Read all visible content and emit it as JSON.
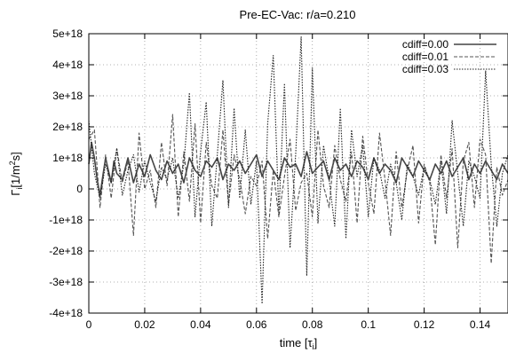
{
  "chart_data": {
    "type": "line",
    "title": "Pre-EC-Vac: r/a=0.210",
    "xlabel": "time [τi]",
    "xlabel_parts": {
      "main": "time [τ",
      "sub": "i",
      "end": "]"
    },
    "ylabel": "Γi[1/m2s]",
    "ylabel_parts": {
      "sym": "Γ",
      "sub": "i",
      "mid": "[1/m",
      "sup": "2",
      "end": "s]"
    },
    "xlim": [
      0,
      0.15
    ],
    "ylim": [
      -4e+18,
      5e+18
    ],
    "xticks": [
      0,
      0.02,
      0.04,
      0.06,
      0.08,
      0.1,
      0.12,
      0.14
    ],
    "xtick_labels": [
      "0",
      "0.02",
      "0.04",
      "0.06",
      "0.08",
      "0.1",
      "0.12",
      "0.14"
    ],
    "yticks": [
      -4e+18,
      -3e+18,
      -2e+18,
      -1e+18,
      0,
      1e+18,
      2e+18,
      3e+18,
      4e+18,
      5e+18
    ],
    "ytick_labels": [
      "-4e+18",
      "-3e+18",
      "-2e+18",
      "-1e+18",
      "0",
      "1e+18",
      "2e+18",
      "3e+18",
      "4e+18",
      "5e+18"
    ],
    "grid": true,
    "legend_position": "top-right",
    "series": [
      {
        "name": "cdiff=0.00",
        "style": "solid",
        "color": "#444444",
        "x": [
          0,
          0.001,
          0.002,
          0.003,
          0.004,
          0.005,
          0.006,
          0.007,
          0.008,
          0.009,
          0.01,
          0.012,
          0.014,
          0.016,
          0.018,
          0.02,
          0.022,
          0.024,
          0.026,
          0.028,
          0.03,
          0.032,
          0.034,
          0.036,
          0.038,
          0.04,
          0.042,
          0.044,
          0.046,
          0.048,
          0.05,
          0.052,
          0.054,
          0.056,
          0.058,
          0.06,
          0.062,
          0.064,
          0.066,
          0.068,
          0.07,
          0.072,
          0.074,
          0.076,
          0.078,
          0.08,
          0.082,
          0.084,
          0.086,
          0.088,
          0.09,
          0.092,
          0.094,
          0.096,
          0.098,
          0.1,
          0.102,
          0.104,
          0.106,
          0.108,
          0.11,
          0.112,
          0.114,
          0.116,
          0.118,
          0.12,
          0.122,
          0.124,
          0.126,
          0.128,
          0.13,
          0.132,
          0.134,
          0.136,
          0.138,
          0.14,
          0.142,
          0.144,
          0.146,
          0.148,
          0.15
        ],
        "y": [
          8e+17,
          1.5e+18,
          1e+18,
          3e+17,
          -2e+17,
          4e+17,
          1e+18,
          6e+17,
          2e+17,
          9e+17,
          5e+17,
          3e+17,
          1e+18,
          2e+17,
          8e+17,
          4e+17,
          1.1e+18,
          6e+17,
          3e+17,
          9e+17,
          5e+17,
          8e+17,
          2e+17,
          1e+18,
          6e+17,
          4e+17,
          9e+17,
          7e+17,
          1e+18,
          3e+17,
          8e+17,
          6e+17,
          9e+17,
          5e+17,
          8e+17,
          1.1e+18,
          4e+17,
          9e+17,
          6e+17,
          3e+17,
          1e+18,
          7e+17,
          8e+17,
          4e+17,
          1.2e+18,
          5e+17,
          7e+17,
          9e+17,
          3e+17,
          1e+18,
          6e+17,
          8e+17,
          4e+17,
          9e+17,
          7e+17,
          3e+17,
          1e+18,
          5e+17,
          8e+17,
          6e+17,
          2e+17,
          1e+18,
          7e+17,
          4e+17,
          9e+17,
          6e+17,
          3e+17,
          8e+17,
          5e+17,
          9e+17,
          4e+17,
          7e+17,
          1e+18,
          3e+17,
          8e+17,
          5e+17,
          9e+17,
          6e+17,
          3e+17,
          8e+17,
          5e+17
        ]
      },
      {
        "name": "cdiff=0.01",
        "style": "dashed",
        "color": "#555555",
        "x": [
          0,
          0.002,
          0.004,
          0.006,
          0.008,
          0.01,
          0.012,
          0.014,
          0.016,
          0.018,
          0.02,
          0.022,
          0.024,
          0.026,
          0.028,
          0.03,
          0.032,
          0.034,
          0.036,
          0.038,
          0.04,
          0.042,
          0.044,
          0.046,
          0.048,
          0.05,
          0.052,
          0.054,
          0.056,
          0.058,
          0.06,
          0.062,
          0.064,
          0.066,
          0.068,
          0.07,
          0.072,
          0.074,
          0.076,
          0.078,
          0.08,
          0.082,
          0.084,
          0.086,
          0.088,
          0.09,
          0.092,
          0.094,
          0.096,
          0.098,
          0.1,
          0.102,
          0.104,
          0.106,
          0.108,
          0.11,
          0.112,
          0.114,
          0.116,
          0.118,
          0.12,
          0.122,
          0.124,
          0.126,
          0.128,
          0.13,
          0.132,
          0.134,
          0.136,
          0.138,
          0.14,
          0.142,
          0.144,
          0.146,
          0.148,
          0.15
        ],
        "y": [
          1.6e+18,
          1.9e+18,
          -6e+17,
          1.1e+18,
          -3e+17,
          1.3e+18,
          2e+17,
          9e+17,
          -1.5e+18,
          1.8e+18,
          0.0,
          6e+17,
          -6e+17,
          1.5e+18,
          1e+17,
          2.4e+18,
          -9e+17,
          1.2e+18,
          -4e+17,
          2.1e+18,
          -1.1e+18,
          1.5e+18,
          1e+17,
          -3e+17,
          1.9e+18,
          -5e+17,
          1.1e+18,
          3e+17,
          -8e+17,
          4e+17,
          1e+17,
          9e+17,
          -1.6e+18,
          6e+17,
          -9e+17,
          4e+17,
          1.6e+18,
          -7e+17,
          2e+17,
          5e+17,
          -9e+17,
          1.9e+18,
          1e+17,
          -6e+17,
          1.4e+18,
          3e+17,
          -4e+17,
          1.2e+18,
          -1.1e+18,
          1.7e+18,
          2e+17,
          -8e+17,
          1.8e+18,
          3e+17,
          -1.5e+18,
          1.2e+18,
          -6e+17,
          6e+17,
          1.4e+18,
          -1.1e+18,
          8e+17,
          2e+17,
          -1.8e+18,
          1.1e+18,
          -3e+17,
          1.3e+18,
          -1.9e+18,
          9e+17,
          1.5e+18,
          -6e+17,
          1.6e+18,
          1.1e+18,
          -2.4e+18,
          7e+17,
          -2e+17,
          3e+17
        ]
      },
      {
        "name": "cdiff=0.03",
        "style": "dotted",
        "color": "#222222",
        "x": [
          0,
          0.002,
          0.004,
          0.006,
          0.008,
          0.01,
          0.012,
          0.014,
          0.016,
          0.018,
          0.02,
          0.022,
          0.024,
          0.026,
          0.028,
          0.03,
          0.032,
          0.034,
          0.036,
          0.038,
          0.04,
          0.042,
          0.044,
          0.046,
          0.048,
          0.05,
          0.052,
          0.054,
          0.056,
          0.058,
          0.06,
          0.062,
          0.064,
          0.066,
          0.068,
          0.07,
          0.072,
          0.074,
          0.076,
          0.078,
          0.08,
          0.082,
          0.084,
          0.086,
          0.088,
          0.09,
          0.092,
          0.094,
          0.096,
          0.098,
          0.1,
          0.102,
          0.104,
          0.106,
          0.108,
          0.11,
          0.112,
          0.114,
          0.116,
          0.118,
          0.12,
          0.122,
          0.124,
          0.126,
          0.128,
          0.13,
          0.132,
          0.134,
          0.136,
          0.138,
          0.14,
          0.142,
          0.144,
          0.146,
          0.148,
          0.15
        ],
        "y": [
          2.2e+18,
          5e+17,
          -3e+17,
          8e+17,
          2e+17,
          1.3e+18,
          -2e+17,
          6e+17,
          1.1e+18,
          -1e+17,
          9e+17,
          2e+17,
          -4e+17,
          7e+17,
          3e+17,
          1e+18,
          -3e+17,
          8e+17,
          3.1e+18,
          -9e+17,
          1.2e+18,
          2.8e+18,
          -1.2e+18,
          1.1e+18,
          3.5e+18,
          -6e+17,
          2.6e+18,
          -3e+17,
          1.9e+18,
          -5e+17,
          9e+17,
          -3.7e+18,
          2.1e+18,
          4.3e+18,
          -8e+17,
          3.4e+18,
          -1.9e+18,
          1.1e+18,
          4.9e+18,
          -2.8e+18,
          3.9e+18,
          -1.1e+18,
          1.4e+18,
          3e+17,
          -1.2e+18,
          2.6e+18,
          -1.6e+18,
          1.9e+18,
          4e+17,
          1.4e+18,
          -9e+17,
          1e+18,
          6e+17,
          -3e+17,
          8e+17,
          2e+17,
          -1e+18,
          8e+17,
          4e+17,
          -2e+17,
          7e+17,
          3e+17,
          -5e+17,
          9e+17,
          -8e+17,
          2.2e+18,
          5e+17,
          -1.2e+18,
          9e+17,
          4e+17,
          -3e+17,
          3.8e+18,
          8e+17,
          -1.2e+18,
          5e+17,
          1.1e+18
        ]
      }
    ]
  }
}
